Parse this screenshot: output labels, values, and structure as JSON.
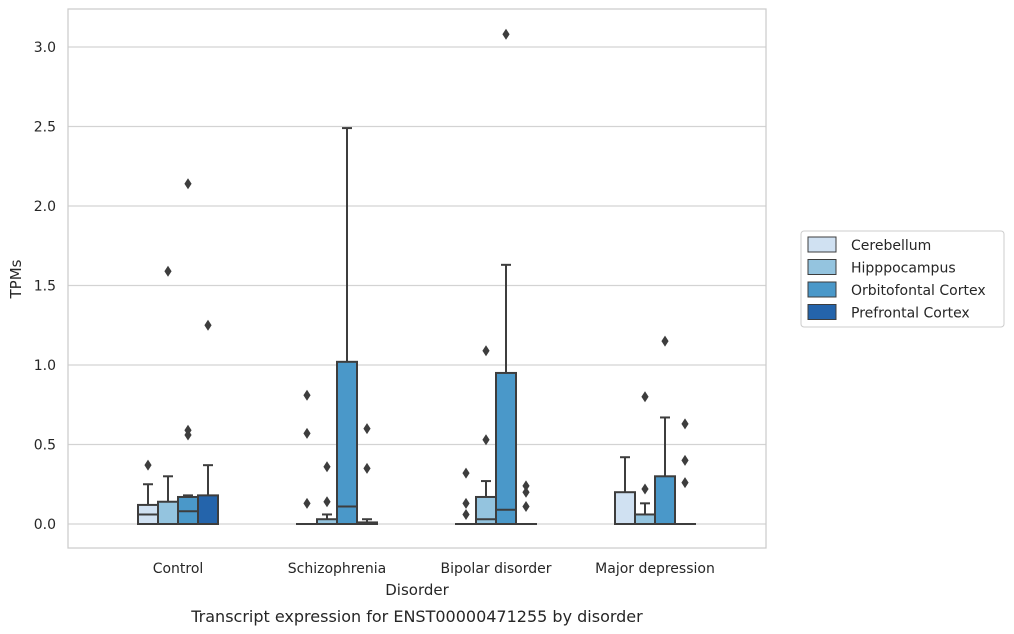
{
  "chart_data": {
    "type": "box",
    "xlabel": "Disorder",
    "ylabel": "TPMs",
    "caption": "Transcript expression for ENST00000471255 by disorder",
    "categories": [
      "Control",
      "Schizophrenia",
      "Bipolar disorder",
      "Major depression"
    ],
    "yticks": [
      "0.0",
      "0.5",
      "1.0",
      "1.5",
      "2.0",
      "2.5",
      "3.0"
    ],
    "ylim": [
      -0.15,
      3.25
    ],
    "grid": "horizontal",
    "legend_position": "right",
    "legend": [
      "Cerebellum",
      "Hipppocampus",
      "Orbitofontal Cortex",
      "Prefrontal Cortex"
    ],
    "colors": {
      "Cerebellum": "#d0e1f2",
      "Hipppocampus": "#94c4df",
      "Orbitofontal Cortex": "#4a98c9",
      "Prefrontal Cortex": "#2464ab",
      "line": "#3d3d3d",
      "grid": "#d3d3d3",
      "frame": "#cccccc"
    },
    "boxes": [
      {
        "category": "Control",
        "tissue": "Cerebellum",
        "min": 0.0,
        "q1": 0.0,
        "median": 0.06,
        "q3": 0.12,
        "max": 0.25,
        "outliers": [
          0.37
        ]
      },
      {
        "category": "Control",
        "tissue": "Hipppocampus",
        "min": 0.0,
        "q1": 0.0,
        "median": 0.0,
        "q3": 0.14,
        "max": 0.3,
        "outliers": [
          1.59
        ]
      },
      {
        "category": "Control",
        "tissue": "Orbitofontal Cortex",
        "min": 0.0,
        "q1": 0.0,
        "median": 0.08,
        "q3": 0.17,
        "max": 0.18,
        "outliers": [
          0.56,
          0.59,
          2.14
        ]
      },
      {
        "category": "Control",
        "tissue": "Prefrontal Cortex",
        "min": 0.0,
        "q1": 0.0,
        "median": 0.0,
        "q3": 0.18,
        "max": 0.37,
        "outliers": [
          1.25
        ]
      },
      {
        "category": "Schizophrenia",
        "tissue": "Cerebellum",
        "min": 0.0,
        "q1": 0.0,
        "median": 0.0,
        "q3": 0.0,
        "max": 0.0,
        "outliers": [
          0.13,
          0.57,
          0.81
        ]
      },
      {
        "category": "Schizophrenia",
        "tissue": "Hipppocampus",
        "min": 0.0,
        "q1": 0.0,
        "median": 0.0,
        "q3": 0.03,
        "max": 0.06,
        "outliers": [
          0.14,
          0.36
        ]
      },
      {
        "category": "Schizophrenia",
        "tissue": "Orbitofontal Cortex",
        "min": 0.0,
        "q1": 0.0,
        "median": 0.11,
        "q3": 1.02,
        "max": 2.49,
        "outliers": []
      },
      {
        "category": "Schizophrenia",
        "tissue": "Prefrontal Cortex",
        "min": 0.0,
        "q1": 0.0,
        "median": 0.0,
        "q3": 0.01,
        "max": 0.03,
        "outliers": [
          0.35,
          0.6
        ]
      },
      {
        "category": "Bipolar disorder",
        "tissue": "Cerebellum",
        "min": 0.0,
        "q1": 0.0,
        "median": 0.0,
        "q3": 0.0,
        "max": 0.0,
        "outliers": [
          0.06,
          0.13,
          0.32
        ]
      },
      {
        "category": "Bipolar disorder",
        "tissue": "Hipppocampus",
        "min": 0.0,
        "q1": 0.0,
        "median": 0.03,
        "q3": 0.17,
        "max": 0.27,
        "outliers": [
          0.53,
          1.09
        ]
      },
      {
        "category": "Bipolar disorder",
        "tissue": "Orbitofontal Cortex",
        "min": 0.0,
        "q1": 0.0,
        "median": 0.09,
        "q3": 0.95,
        "max": 1.63,
        "outliers": [
          3.08
        ]
      },
      {
        "category": "Bipolar disorder",
        "tissue": "Prefrontal Cortex",
        "min": 0.0,
        "q1": 0.0,
        "median": 0.0,
        "q3": 0.0,
        "max": 0.0,
        "outliers": [
          0.11,
          0.2,
          0.24
        ]
      },
      {
        "category": "Major depression",
        "tissue": "Cerebellum",
        "min": 0.0,
        "q1": 0.0,
        "median": 0.0,
        "q3": 0.2,
        "max": 0.42,
        "outliers": []
      },
      {
        "category": "Major depression",
        "tissue": "Hipppocampus",
        "min": 0.0,
        "q1": 0.0,
        "median": 0.0,
        "q3": 0.06,
        "max": 0.13,
        "outliers": [
          0.22,
          0.8
        ]
      },
      {
        "category": "Major depression",
        "tissue": "Orbitofontal Cortex",
        "min": 0.0,
        "q1": 0.0,
        "median": 0.0,
        "q3": 0.3,
        "max": 0.67,
        "outliers": [
          1.15
        ]
      },
      {
        "category": "Major depression",
        "tissue": "Prefrontal Cortex",
        "min": 0.0,
        "q1": 0.0,
        "median": 0.0,
        "q3": 0.0,
        "max": 0.0,
        "outliers": [
          0.26,
          0.4,
          0.63
        ]
      }
    ]
  }
}
